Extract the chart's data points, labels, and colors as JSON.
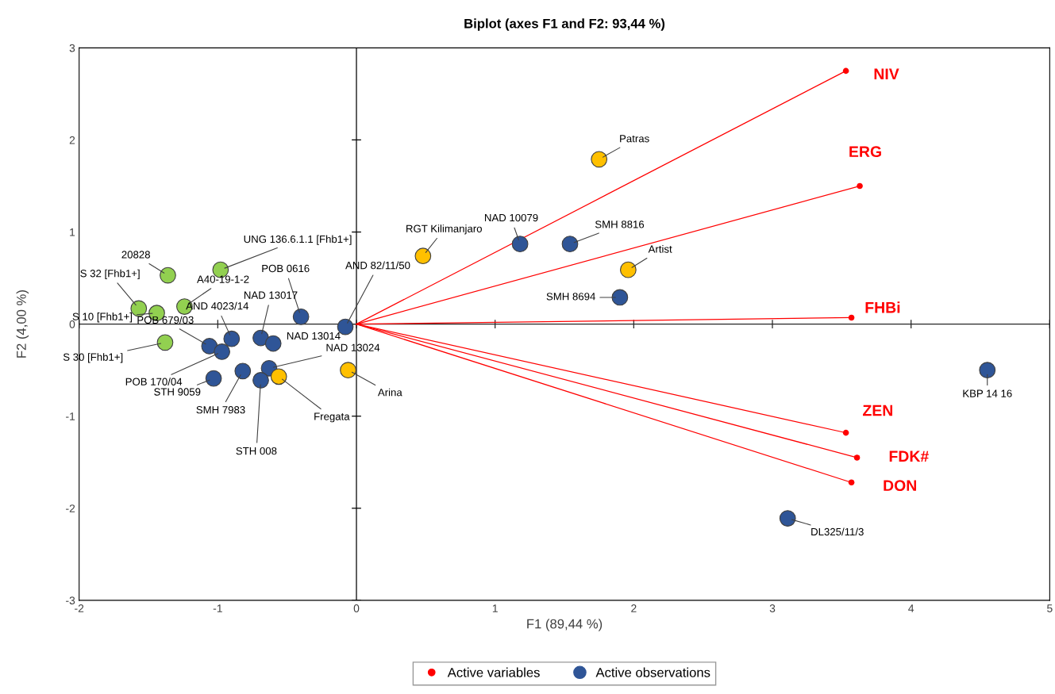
{
  "chart_data": {
    "type": "scatter",
    "title": "Biplot (axes F1 and F2: 93,44 %)",
    "xlabel": "F1 (89,44 %)",
    "ylabel": "F2 (4,00 %)",
    "xlim": [
      -2,
      5
    ],
    "xticks": [
      -2,
      -1,
      0,
      1,
      2,
      3,
      4,
      5
    ],
    "ylim": [
      -3,
      3
    ],
    "yticks": [
      -3,
      -2,
      -1,
      0,
      1,
      2,
      3
    ],
    "grid": false,
    "legend": "bottom",
    "marker": "circle",
    "ref_lines": [
      {
        "axis": "x",
        "value": 0,
        "color": "#000000"
      },
      {
        "axis": "y",
        "value": 0,
        "color": "#262626"
      }
    ],
    "series": [
      {
        "type": "line",
        "marker": "none",
        "color": "#ff0000",
        "x": [
          0,
          3.53
        ],
        "values": [
          0,
          2.75
        ]
      },
      {
        "type": "line",
        "marker": "none",
        "color": "#ff0000",
        "x": [
          0,
          3.63
        ],
        "values": [
          0,
          1.5
        ]
      },
      {
        "type": "line",
        "marker": "none",
        "color": "#ff0000",
        "x": [
          0,
          3.57
        ],
        "values": [
          0,
          0.07
        ]
      },
      {
        "type": "line",
        "marker": "none",
        "color": "#ff0000",
        "x": [
          0,
          3.53
        ],
        "values": [
          0,
          -1.18
        ]
      },
      {
        "type": "line",
        "marker": "none",
        "color": "#ff0000",
        "x": [
          0,
          3.61
        ],
        "values": [
          0,
          -1.45
        ]
      },
      {
        "type": "line",
        "marker": "none",
        "color": "#ff0000",
        "x": [
          0,
          3.57
        ],
        "values": [
          0,
          -1.72
        ]
      },
      {
        "name": "Active variables",
        "color": "#ff0000",
        "x": [
          3.53,
          3.63,
          3.57,
          3.53,
          3.61,
          3.57
        ],
        "values": [
          2.75,
          1.5,
          0.07,
          -1.18,
          -1.45,
          -1.72
        ]
      },
      {
        "name": "Active observations",
        "color": "#2f5597",
        "x": [
          -1.36,
          -0.98,
          -1.57,
          -1.44,
          -1.24,
          -1.38,
          -0.4,
          -0.08,
          -0.9,
          -1.06,
          -0.97,
          -1.03,
          -0.82,
          -0.69,
          -0.6,
          -0.63,
          -0.69,
          -0.56,
          -0.06,
          0.48,
          1.18,
          1.54,
          1.75,
          1.96,
          1.9,
          4.55,
          3.11
        ],
        "values": [
          0.53,
          0.59,
          0.17,
          0.12,
          0.19,
          -0.2,
          0.08,
          -0.03,
          -0.16,
          -0.24,
          -0.3,
          -0.59,
          -0.51,
          -0.15,
          -0.21,
          -0.48,
          -0.61,
          -0.57,
          -0.5,
          0.74,
          0.87,
          0.87,
          1.79,
          0.59,
          0.29,
          -0.5,
          -2.11
        ],
        "colors": [
          "#92d050",
          "#92d050",
          "#92d050",
          "#92d050",
          "#92d050",
          "#92d050",
          "#2f5597",
          "#2f5597",
          "#2f5597",
          "#2f5597",
          "#2f5597",
          "#2f5597",
          "#2f5597",
          "#2f5597",
          "#2f5597",
          "#2f5597",
          "#2f5597",
          "#ffc000",
          "#ffc000",
          "#ffc000",
          "#2f5597",
          "#2f5597",
          "#ffc000",
          "#ffc000",
          "#2f5597",
          "#2f5597",
          "#2f5597"
        ]
      }
    ],
    "annotations": [
      {
        "text": "20828",
        "x": -1.36,
        "y": 0.53
      },
      {
        "text": "UNG 136.6.1.1 [Fhb1+]",
        "x": -0.98,
        "y": 0.59
      },
      {
        "text": "S 32 [Fhb1+]",
        "x": -1.57,
        "y": 0.17
      },
      {
        "text": "S 10 [Fhb1+]",
        "x": -1.44,
        "y": 0.12
      },
      {
        "text": "A40-19-1-2",
        "x": -1.24,
        "y": 0.19
      },
      {
        "text": "S 30 [Fhb1+]",
        "x": -1.38,
        "y": -0.2
      },
      {
        "text": "POB 0616",
        "x": -0.4,
        "y": 0.08
      },
      {
        "text": "AND 82/11/50",
        "x": -0.08,
        "y": -0.03
      },
      {
        "text": "AND 4023/14",
        "x": -0.9,
        "y": -0.16
      },
      {
        "text": "POB 679/03",
        "x": -1.06,
        "y": -0.24
      },
      {
        "text": "POB 170/04",
        "x": -0.97,
        "y": -0.3
      },
      {
        "text": "STH 9059",
        "x": -1.03,
        "y": -0.59
      },
      {
        "text": "SMH 7983",
        "x": -0.82,
        "y": -0.51
      },
      {
        "text": "NAD 13017",
        "x": -0.69,
        "y": -0.15
      },
      {
        "text": "NAD 13014",
        "x": -0.6,
        "y": -0.21
      },
      {
        "text": "NAD 13024",
        "x": -0.63,
        "y": -0.48
      },
      {
        "text": "STH 008",
        "x": -0.69,
        "y": -0.61
      },
      {
        "text": "Fregata",
        "x": -0.56,
        "y": -0.57
      },
      {
        "text": "Arina",
        "x": -0.06,
        "y": -0.5
      },
      {
        "text": "RGT Kilimanjaro",
        "x": 0.48,
        "y": 0.74
      },
      {
        "text": "NAD 10079",
        "x": 1.18,
        "y": 0.87
      },
      {
        "text": "SMH 8816",
        "x": 1.54,
        "y": 0.87
      },
      {
        "text": "Patras",
        "x": 1.75,
        "y": 1.79
      },
      {
        "text": "Artist",
        "x": 1.96,
        "y": 0.59
      },
      {
        "text": "SMH 8694",
        "x": 1.9,
        "y": 0.29
      },
      {
        "text": "KBP 14 16",
        "x": 4.55,
        "y": -0.5
      },
      {
        "text": "DL325/11/3",
        "x": 3.11,
        "y": -2.11
      },
      {
        "text": "NIV",
        "x": 3.53,
        "y": 2.75
      },
      {
        "text": "ERG",
        "x": 3.63,
        "y": 1.5
      },
      {
        "text": "FHBi",
        "x": 3.57,
        "y": 0.07
      },
      {
        "text": "ZEN",
        "x": 3.53,
        "y": -1.18
      },
      {
        "text": "FDK#",
        "x": 3.61,
        "y": -1.45
      },
      {
        "text": "DON",
        "x": 3.57,
        "y": -1.72
      }
    ]
  }
}
